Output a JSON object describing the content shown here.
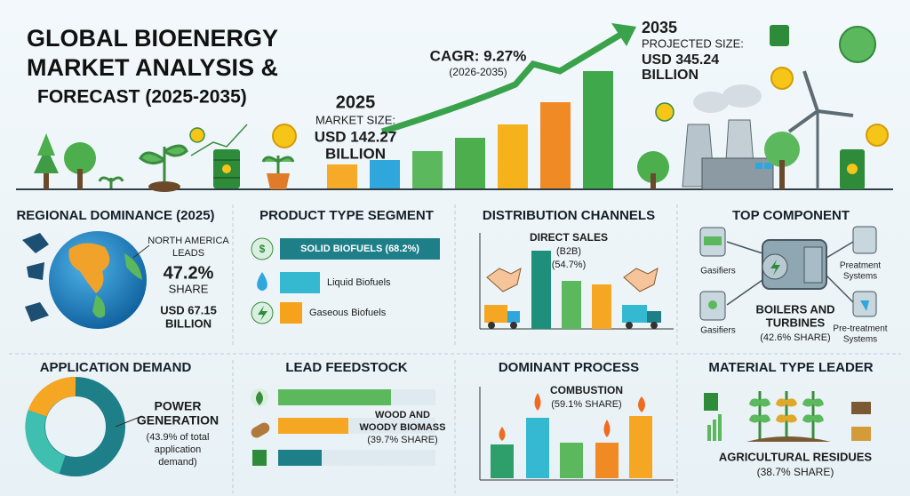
{
  "header": {
    "title_lines": [
      "GLOBAL BIOENERGY",
      "MARKET ANALYSIS &",
      "FORECAST (2025-2035)"
    ],
    "start": {
      "year": "2025",
      "label": "MARKET SIZE:",
      "value_lines": [
        "USD 142.27",
        "BILLION"
      ]
    },
    "cagr": {
      "label": "CAGR: 9.27%",
      "period": "(2026-2035)"
    },
    "end": {
      "year": "2035",
      "label": "PROJECTED SIZE:",
      "value_lines": [
        "USD 345.24",
        "BILLION"
      ]
    }
  },
  "panels": [
    {
      "title": "REGIONAL DOMINANCE (2025)",
      "texts": [
        "NORTH AMERICA",
        "LEADS",
        "47.2%",
        "SHARE",
        "USD 67.15",
        "BILLION"
      ]
    },
    {
      "title": "PRODUCT TYPE SEGMENT",
      "texts": [
        "SOLID BIOFUELS (68.2%)",
        "Liquid Biofuels",
        "Gaseous Biofuels"
      ]
    },
    {
      "title": "DISTRIBUTION CHANNELS",
      "texts": [
        "DIRECT SALES",
        "(B2B)",
        "(54.7%)"
      ]
    },
    {
      "title": "TOP COMPONENT",
      "texts": [
        "Gasifiers",
        "Preatment",
        "Systems",
        "Gasifiers",
        "BOILERS AND",
        "TURBINES",
        "(42.6% SHARE)",
        "Pre-treatment",
        "Systems"
      ]
    },
    {
      "title": "APPLICATION DEMAND",
      "texts": [
        "POWER",
        "GENERATION",
        "(43.9% of total",
        "application",
        "demand)"
      ]
    },
    {
      "title": "LEAD FEEDSTOCK",
      "texts": [
        "WOOD AND",
        "WOODY BIOMASS",
        "(39.7% SHARE)"
      ]
    },
    {
      "title": "DOMINANT PROCESS",
      "texts": [
        "COMBUSTION",
        "(59.1% SHARE)"
      ]
    },
    {
      "title": "MATERIAL TYPE LEADER",
      "texts": [
        "AGRICULTURAL RESIDUES",
        "(38.7% SHARE)"
      ]
    }
  ]
}
